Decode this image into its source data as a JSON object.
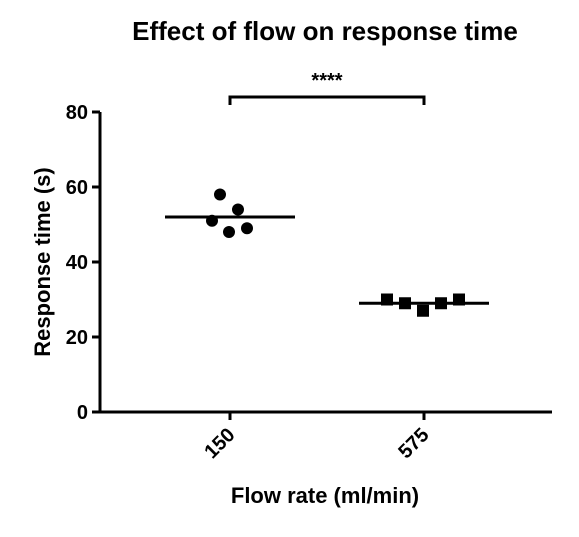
{
  "chart_data": {
    "type": "scatter",
    "title": "Effect of flow on response time",
    "xlabel": "Flow rate (ml/min)",
    "ylabel": "Response time (s)",
    "categories": [
      "150",
      "575"
    ],
    "ylim": [
      0,
      80
    ],
    "yticks": [
      "0",
      "20",
      "40",
      "60",
      "80"
    ],
    "grid": false,
    "legend": "none",
    "series": [
      {
        "category": "150",
        "marker": "circle",
        "values": [
          58,
          51,
          54,
          48,
          49
        ],
        "mean": 52
      },
      {
        "category": "575",
        "marker": "square",
        "values": [
          30,
          29,
          27,
          29,
          30
        ],
        "mean": 29
      }
    ],
    "annotations": [
      {
        "text": "****",
        "from": "150",
        "to": "575"
      }
    ],
    "colors": {
      "marker": "#000000",
      "axis": "#000000"
    }
  }
}
